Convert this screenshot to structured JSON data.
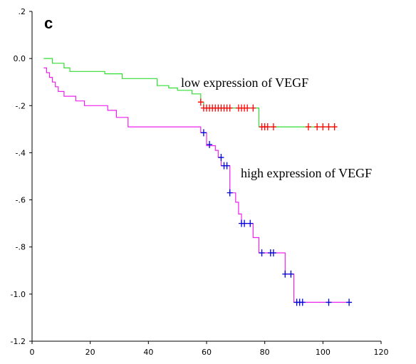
{
  "panel_label": "c",
  "colors": {
    "low_line": "#33dd33",
    "low_censor": "#ff0000",
    "high_line": "#ee22ee",
    "high_censor": "#0000dd",
    "axis": "#000000"
  },
  "chart_data": {
    "type": "line",
    "title": "",
    "xlabel": "",
    "ylabel": "",
    "xlim": [
      0,
      120
    ],
    "ylim": [
      -1.2,
      0.2
    ],
    "x_ticks": [
      0,
      20,
      40,
      60,
      80,
      100,
      120
    ],
    "x_tick_labels": [
      "0",
      "20",
      "40",
      "60",
      "80",
      "100",
      "120"
    ],
    "y_ticks": [
      0.2,
      0.0,
      -0.2,
      -0.4,
      -0.6,
      -0.8,
      -1.0,
      -1.2
    ],
    "y_tick_labels": [
      ".2",
      "0.0",
      "-.2",
      "-.4",
      "-.6",
      "-.8",
      "-1.0",
      "-1.2"
    ],
    "grid": false,
    "legend": "none",
    "annotations": [
      {
        "text": "low expression of VEGF",
        "series": "low"
      },
      {
        "text": "high expression of VEGF",
        "series": "high"
      }
    ],
    "series": [
      {
        "key": "low",
        "style": "step",
        "steps": [
          [
            4,
            0.0
          ],
          [
            7,
            -0.02
          ],
          [
            11,
            -0.04
          ],
          [
            13,
            -0.055
          ],
          [
            25,
            -0.065
          ],
          [
            31,
            -0.085
          ],
          [
            43,
            -0.115
          ],
          [
            47,
            -0.125
          ],
          [
            50,
            -0.135
          ],
          [
            55,
            -0.15
          ],
          [
            58,
            -0.185
          ],
          [
            59,
            -0.21
          ],
          [
            78,
            -0.29
          ],
          [
            104,
            -0.29
          ]
        ],
        "censored": [
          [
            58,
            -0.185
          ],
          [
            59,
            -0.21
          ],
          [
            60,
            -0.21
          ],
          [
            61,
            -0.21
          ],
          [
            62,
            -0.21
          ],
          [
            63,
            -0.21
          ],
          [
            64,
            -0.21
          ],
          [
            65,
            -0.21
          ],
          [
            66,
            -0.21
          ],
          [
            67,
            -0.21
          ],
          [
            68,
            -0.21
          ],
          [
            71,
            -0.21
          ],
          [
            72,
            -0.21
          ],
          [
            73,
            -0.21
          ],
          [
            74,
            -0.21
          ],
          [
            76,
            -0.21
          ],
          [
            79,
            -0.29
          ],
          [
            80,
            -0.29
          ],
          [
            81,
            -0.29
          ],
          [
            83,
            -0.29
          ],
          [
            95,
            -0.29
          ],
          [
            98,
            -0.29
          ],
          [
            100,
            -0.29
          ],
          [
            102,
            -0.29
          ],
          [
            104,
            -0.29
          ]
        ]
      },
      {
        "key": "high",
        "style": "step",
        "steps": [
          [
            4,
            -0.04
          ],
          [
            5,
            -0.06
          ],
          [
            6,
            -0.08
          ],
          [
            7,
            -0.1
          ],
          [
            8,
            -0.12
          ],
          [
            9,
            -0.14
          ],
          [
            11,
            -0.16
          ],
          [
            15,
            -0.18
          ],
          [
            18,
            -0.2
          ],
          [
            26,
            -0.22
          ],
          [
            29,
            -0.25
          ],
          [
            33,
            -0.29
          ],
          [
            58,
            -0.315
          ],
          [
            60,
            -0.37
          ],
          [
            63,
            -0.39
          ],
          [
            64,
            -0.42
          ],
          [
            65,
            -0.455
          ],
          [
            68,
            -0.57
          ],
          [
            70,
            -0.61
          ],
          [
            71,
            -0.66
          ],
          [
            72,
            -0.7
          ],
          [
            76,
            -0.76
          ],
          [
            78,
            -0.825
          ],
          [
            87,
            -0.915
          ],
          [
            90,
            -1.035
          ],
          [
            109,
            -1.035
          ]
        ],
        "censored": [
          [
            59,
            -0.315
          ],
          [
            61,
            -0.365
          ],
          [
            65,
            -0.42
          ],
          [
            66,
            -0.455
          ],
          [
            67,
            -0.455
          ],
          [
            68,
            -0.57
          ],
          [
            72,
            -0.7
          ],
          [
            73,
            -0.7
          ],
          [
            75,
            -0.7
          ],
          [
            79,
            -0.825
          ],
          [
            82,
            -0.825
          ],
          [
            83,
            -0.825
          ],
          [
            87,
            -0.915
          ],
          [
            89,
            -0.915
          ],
          [
            91,
            -1.035
          ],
          [
            92,
            -1.035
          ],
          [
            93,
            -1.035
          ],
          [
            102,
            -1.035
          ],
          [
            109,
            -1.035
          ]
        ]
      }
    ]
  }
}
